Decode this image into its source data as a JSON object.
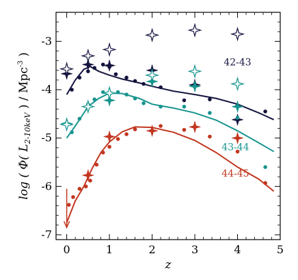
{
  "chart_data": {
    "type": "scatter",
    "title": "",
    "xlabel": "z",
    "ylabel_parts": {
      "prefix": "log ( Φ( ",
      "L": "L",
      "sub": "2-10keV",
      "middle": " ) / Mpc",
      "sup": "-3",
      "suffix": " )"
    },
    "xlim": [
      -0.25,
      5.0
    ],
    "ylim": [
      -7.1,
      -2.4
    ],
    "xticks": [
      0,
      1,
      2,
      3,
      4,
      5
    ],
    "xtick_labels": [
      "0",
      "1",
      "2",
      "3",
      "4",
      "5"
    ],
    "yticks": [
      -7,
      -6,
      -5,
      -4,
      -3
    ],
    "ytick_labels": [
      "-7",
      "-6",
      "-5",
      "-4",
      "-3"
    ],
    "grid": false,
    "series": [
      {
        "name": "42-43",
        "color": "#14143f",
        "label_pos": [
          4.0,
          -3.5
        ],
        "points": [
          [
            0.12,
            -4.0
          ],
          [
            0.3,
            -3.75
          ],
          [
            0.5,
            -3.62
          ],
          [
            0.65,
            -3.55
          ],
          [
            0.85,
            -3.48
          ],
          [
            1.0,
            -3.53
          ],
          [
            1.15,
            -3.68
          ],
          [
            1.4,
            -3.75
          ],
          [
            1.6,
            -3.82
          ],
          [
            1.8,
            -3.88
          ],
          [
            2.2,
            -3.95
          ],
          [
            2.75,
            -4.22
          ],
          [
            3.35,
            -4.2
          ],
          [
            4.0,
            -4.32
          ],
          [
            4.65,
            -4.45
          ]
        ],
        "curve": [
          [
            0.0,
            -4.1
          ],
          [
            0.2,
            -3.8
          ],
          [
            0.4,
            -3.58
          ],
          [
            0.55,
            -3.52
          ],
          [
            0.75,
            -3.62
          ],
          [
            1.0,
            -3.7
          ],
          [
            1.3,
            -3.78
          ],
          [
            1.7,
            -3.86
          ],
          [
            2.0,
            -3.93
          ],
          [
            2.5,
            -4.03
          ],
          [
            3.0,
            -4.1
          ],
          [
            3.5,
            -4.18
          ],
          [
            4.0,
            -4.3
          ],
          [
            4.5,
            -4.48
          ],
          [
            4.85,
            -4.62
          ]
        ],
        "filled_stars": [
          [
            0.0,
            -3.67
          ],
          [
            0.5,
            -3.48
          ],
          [
            1.0,
            -3.5
          ],
          [
            2.0,
            -3.6
          ],
          [
            3.0,
            -3.9
          ],
          [
            4.0,
            -4.62
          ]
        ],
        "open_stars": [
          [
            0.0,
            -3.57
          ],
          [
            0.5,
            -3.3
          ],
          [
            1.0,
            -3.17
          ],
          [
            2.0,
            -2.87
          ],
          [
            3.0,
            -2.77
          ],
          [
            4.0,
            -2.85
          ]
        ]
      },
      {
        "name": "43-44",
        "color": "#17948f",
        "label_pos": [
          3.95,
          -5.25
        ],
        "points": [
          [
            0.12,
            -4.88
          ],
          [
            0.3,
            -4.6
          ],
          [
            0.5,
            -4.3
          ],
          [
            0.65,
            -4.2
          ],
          [
            0.85,
            -4.05
          ],
          [
            1.0,
            -4.05
          ],
          [
            1.2,
            -4.05
          ],
          [
            1.4,
            -4.1
          ],
          [
            1.6,
            -4.18
          ],
          [
            1.8,
            -4.28
          ],
          [
            2.2,
            -4.35
          ],
          [
            2.75,
            -4.35
          ],
          [
            3.35,
            -4.48
          ],
          [
            4.0,
            -4.58
          ],
          [
            4.65,
            -5.6
          ]
        ],
        "curve": [
          [
            0.0,
            -5.0
          ],
          [
            0.2,
            -4.75
          ],
          [
            0.5,
            -4.35
          ],
          [
            0.75,
            -4.18
          ],
          [
            1.0,
            -4.07
          ],
          [
            1.3,
            -4.08
          ],
          [
            1.7,
            -4.18
          ],
          [
            2.0,
            -4.3
          ],
          [
            2.5,
            -4.38
          ],
          [
            3.0,
            -4.48
          ],
          [
            3.5,
            -4.63
          ],
          [
            4.0,
            -4.85
          ],
          [
            4.5,
            -5.1
          ],
          [
            4.85,
            -5.28
          ]
        ],
        "filled_stars": [
          [
            0.0,
            -4.7
          ],
          [
            0.5,
            -4.35
          ],
          [
            1.0,
            -4.22
          ],
          [
            2.0,
            -3.83
          ],
          [
            3.0,
            -3.93
          ],
          [
            4.0,
            -4.35
          ]
        ],
        "open_stars": [
          [
            0.0,
            -4.72
          ],
          [
            0.5,
            -4.35
          ],
          [
            1.0,
            -4.07
          ],
          [
            2.0,
            -3.7
          ],
          [
            3.0,
            -3.62
          ],
          [
            4.0,
            -3.88
          ]
        ]
      },
      {
        "name": "44-45",
        "color": "#c2361f",
        "label_pos": [
          3.95,
          -5.8
        ],
        "points": [
          [
            0.05,
            -6.38
          ],
          [
            0.15,
            -6.22
          ],
          [
            0.3,
            -6.05
          ],
          [
            0.45,
            -6.0
          ],
          [
            0.55,
            -5.88
          ],
          [
            0.7,
            -5.55
          ],
          [
            0.85,
            -5.3
          ],
          [
            1.0,
            -5.18
          ],
          [
            1.2,
            -5.02
          ],
          [
            1.4,
            -4.92
          ],
          [
            1.6,
            -4.82
          ],
          [
            2.2,
            -4.75
          ],
          [
            2.75,
            -4.83
          ],
          [
            3.35,
            -4.97
          ],
          [
            4.0,
            -5.28
          ],
          [
            4.65,
            -5.93
          ]
        ],
        "curve": [
          [
            0.0,
            -6.75
          ],
          [
            0.2,
            -6.3
          ],
          [
            0.4,
            -6.0
          ],
          [
            0.6,
            -5.62
          ],
          [
            0.8,
            -5.3
          ],
          [
            1.0,
            -5.08
          ],
          [
            1.3,
            -4.87
          ],
          [
            1.6,
            -4.77
          ],
          [
            2.0,
            -4.78
          ],
          [
            2.5,
            -4.88
          ],
          [
            3.0,
            -5.05
          ],
          [
            3.5,
            -5.3
          ],
          [
            4.0,
            -5.6
          ],
          [
            4.5,
            -5.85
          ],
          [
            4.85,
            -6.1
          ]
        ],
        "filled_stars": [
          [
            0.5,
            -5.77
          ],
          [
            1.0,
            -4.97
          ],
          [
            2.0,
            -4.85
          ],
          [
            3.0,
            -4.77
          ],
          [
            4.0,
            -5.0
          ]
        ],
        "open_stars": [],
        "upper_limit": {
          "x": 0.0,
          "y_from": -6.05,
          "y_to": -6.85
        }
      }
    ]
  }
}
